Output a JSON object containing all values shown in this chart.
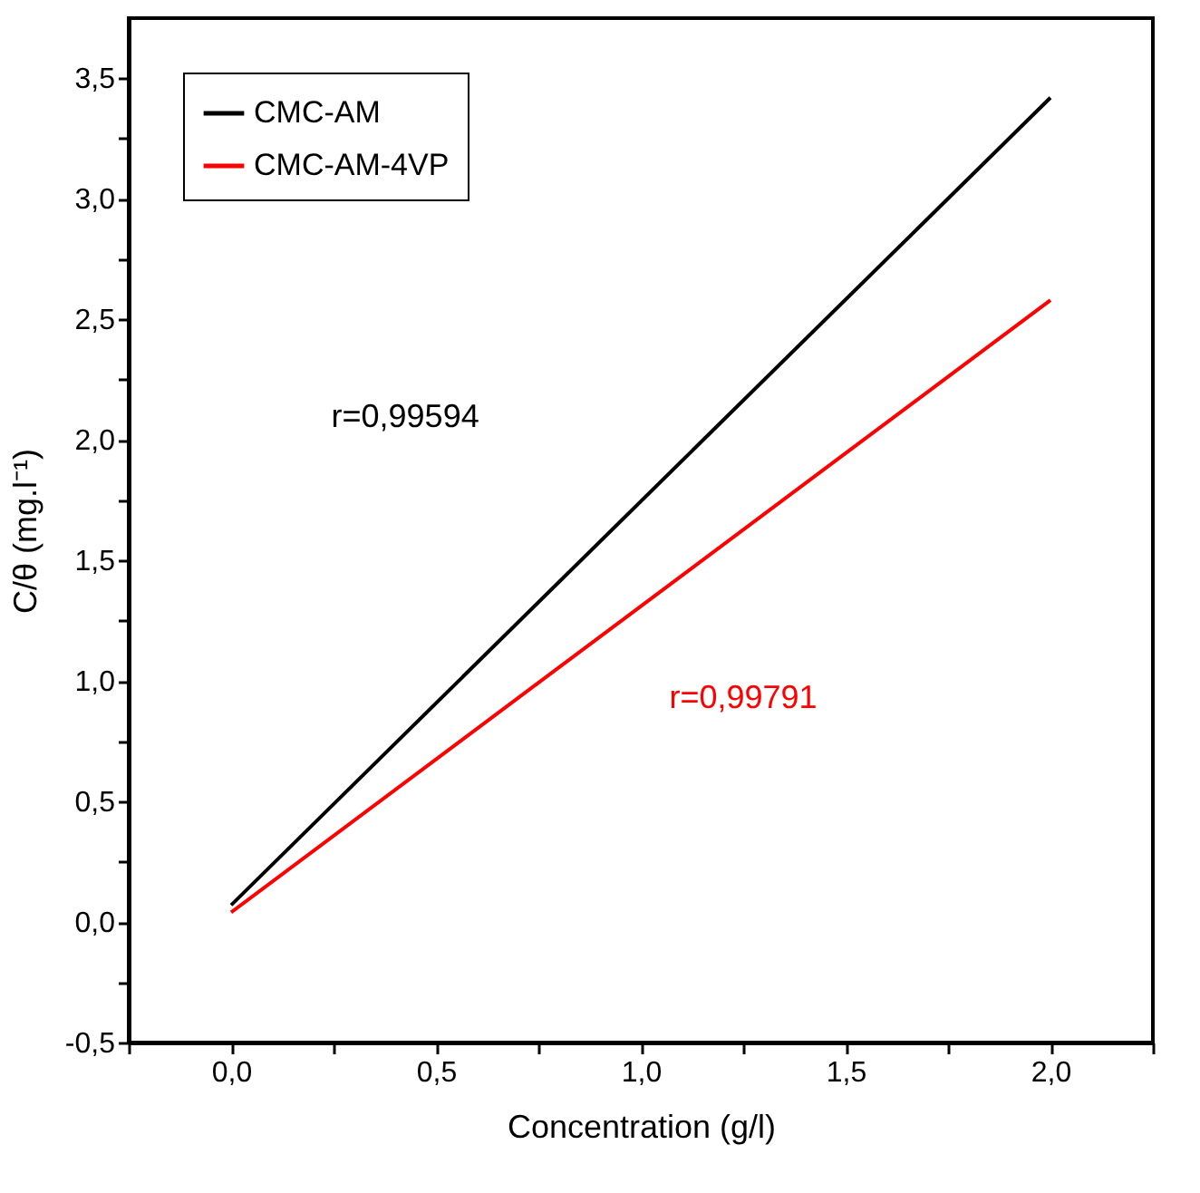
{
  "chart_data": {
    "type": "line",
    "xlabel": "Concentration (g/l)",
    "ylabel": "C/θ (mg.l⁻¹)",
    "x": [
      0,
      2
    ],
    "series": [
      {
        "name": "CMC-AM",
        "color": "#000000",
        "values": [
          0.07,
          3.42
        ]
      },
      {
        "name": "CMC-AM-4VP",
        "color": "#ff0000",
        "values": [
          0.04,
          2.58
        ]
      }
    ],
    "xlim": [
      -0.25,
      2.25
    ],
    "xticks": [
      {
        "value": -0.25,
        "label": null
      },
      {
        "value": 0,
        "label": "0,0"
      },
      {
        "value": 0.25,
        "label": null
      },
      {
        "value": 0.5,
        "label": "0,5"
      },
      {
        "value": 0.75,
        "label": null
      },
      {
        "value": 1,
        "label": "1,0"
      },
      {
        "value": 1.25,
        "label": null
      },
      {
        "value": 1.5,
        "label": "1,5"
      },
      {
        "value": 1.75,
        "label": null
      },
      {
        "value": 2,
        "label": "2,0"
      },
      {
        "value": 2.25,
        "label": null
      }
    ],
    "ylim": [
      -0.5,
      3.75
    ],
    "yticks": [
      {
        "value": -0.5,
        "label": "-0,5"
      },
      {
        "value": -0.25,
        "label": null
      },
      {
        "value": 0,
        "label": "0,0"
      },
      {
        "value": 0.25,
        "label": null
      },
      {
        "value": 0.5,
        "label": "0,5"
      },
      {
        "value": 0.75,
        "label": null
      },
      {
        "value": 1,
        "label": "1,0"
      },
      {
        "value": 1.25,
        "label": null
      },
      {
        "value": 1.5,
        "label": "1,5"
      },
      {
        "value": 1.75,
        "label": null
      },
      {
        "value": 2,
        "label": "2,0"
      },
      {
        "value": 2.25,
        "label": null
      },
      {
        "value": 2.5,
        "label": "2,5"
      },
      {
        "value": 2.75,
        "label": null
      },
      {
        "value": 3,
        "label": "3,0"
      },
      {
        "value": 3.25,
        "label": null
      },
      {
        "value": 3.5,
        "label": "3,5"
      }
    ],
    "annotations": [
      "r=0,99594",
      "r=0,99791"
    ],
    "legend": "top left",
    "grid": false,
    "marker": "none",
    "line_style": "solid"
  }
}
